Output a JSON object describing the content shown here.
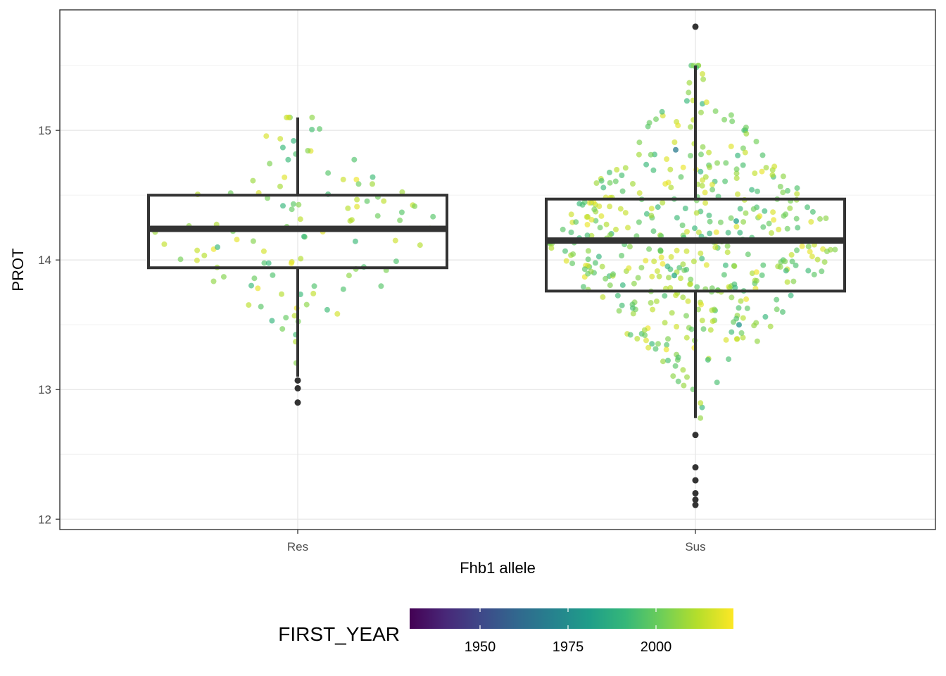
{
  "chart_data": {
    "type": "box",
    "title": "",
    "xlabel": "Fhb1 allele",
    "ylabel": "PROT",
    "categories": [
      "Res",
      "Sus"
    ],
    "ylim": [
      11.92,
      15.93
    ],
    "yticks": [
      12,
      13,
      14,
      15
    ],
    "grid": true,
    "boxes": [
      {
        "category": "Res",
        "q1": 13.94,
        "median": 14.24,
        "q3": 14.5,
        "whisker_low": 13.1,
        "whisker_high": 15.1,
        "outliers": [
          13.07,
          13.01,
          12.9
        ]
      },
      {
        "category": "Sus",
        "q1": 13.76,
        "median": 14.15,
        "q3": 14.47,
        "whisker_low": 12.78,
        "whisker_high": 15.5,
        "outliers": [
          15.8,
          12.65,
          12.4,
          12.3,
          12.2,
          12.15,
          12.11
        ]
      }
    ],
    "points_color_variable": "FIRST_YEAR",
    "point_counts": [
      110,
      440
    ],
    "point_color_range": [
      1990,
      2020
    ],
    "point_seed": 7,
    "legend": {
      "title": "FIRST_YEAR",
      "position": "bottom",
      "ticks": [
        1950,
        1975,
        2000
      ],
      "range": [
        1930,
        2022
      ],
      "palette": [
        "#440154",
        "#482878",
        "#3e4989",
        "#31688e",
        "#26828e",
        "#1f9e89",
        "#35b779",
        "#6ece58",
        "#b5de2b",
        "#fde725"
      ]
    }
  }
}
